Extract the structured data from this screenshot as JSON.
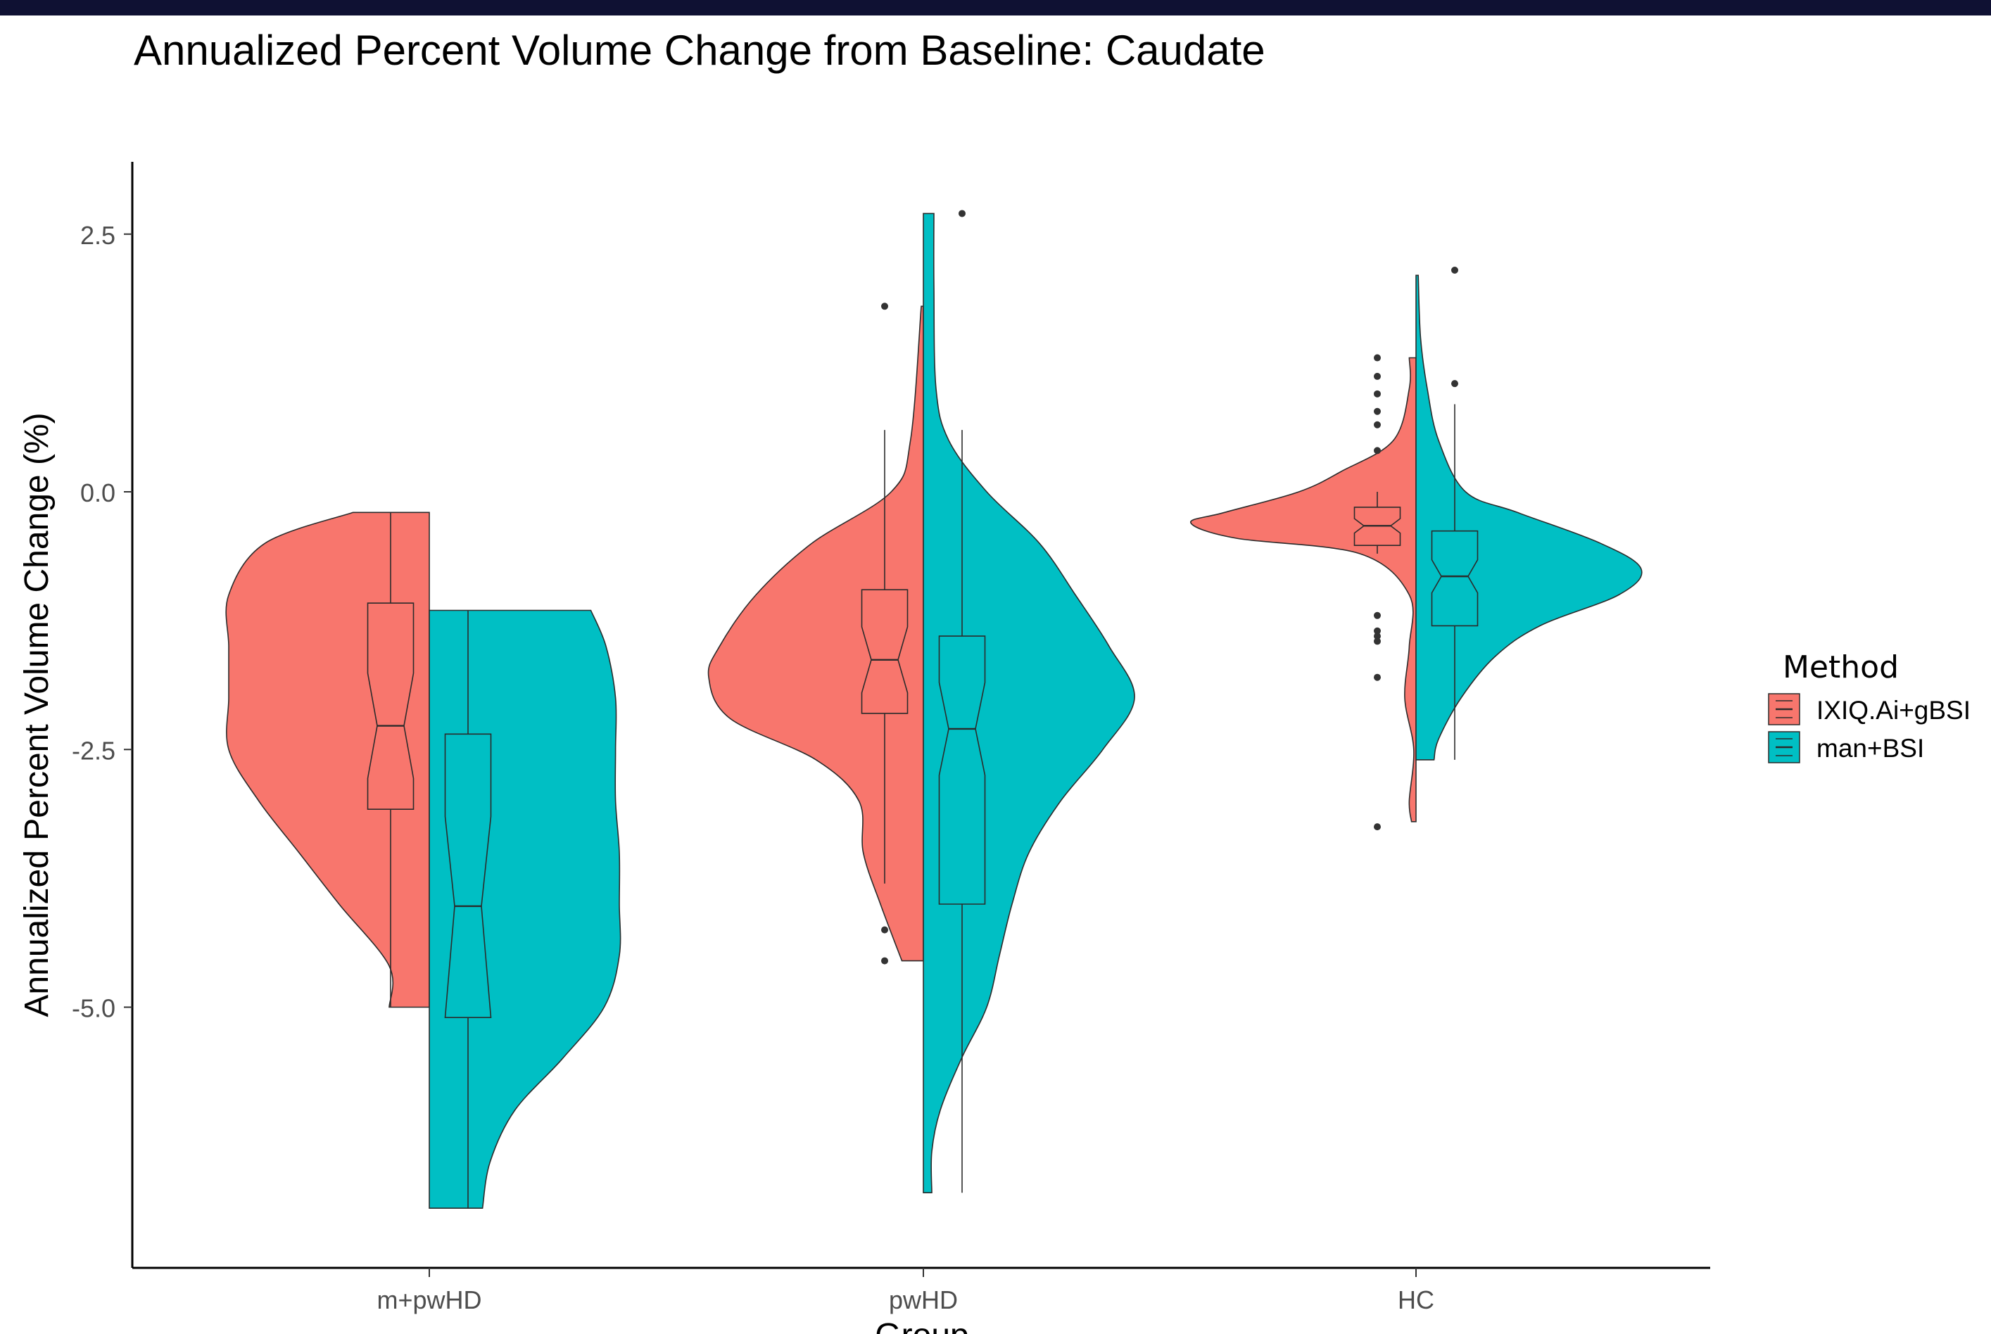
{
  "chart_data": {
    "type": "violin",
    "title": "Annualized Percent Volume Change from Baseline: Caudate",
    "xlabel": "Group",
    "ylabel": "Annualized Percent Volume Change (%)",
    "categories": [
      "m+pwHD",
      "pwHD",
      "HC"
    ],
    "y_ticks": [
      2.5,
      0.0,
      -2.5,
      -5.0
    ],
    "y_tick_labels": [
      "2.5",
      "0.0",
      "-2.5",
      "-5.0"
    ],
    "ylim": [
      -7.5,
      3.1
    ],
    "grid": false,
    "legend": {
      "title": "Method",
      "position": "right",
      "entries": [
        "IXIQ.Ai+gBSI",
        "man+BSI"
      ]
    },
    "colors": {
      "IXIQ.Ai+gBSI": "#F8766D",
      "man+BSI": "#00BFC4"
    },
    "series": [
      {
        "name": "IXIQ.Ai+gBSI",
        "side": "left",
        "groups": [
          {
            "category": "m+pwHD",
            "violin": [
              [
                -0.2,
                0.38
              ],
              [
                -0.5,
                0.82
              ],
              [
                -1.0,
                1.0
              ],
              [
                -1.5,
                1.0
              ],
              [
                -2.0,
                1.0
              ],
              [
                -2.5,
                1.0
              ],
              [
                -3.0,
                0.85
              ],
              [
                -3.5,
                0.65
              ],
              [
                -4.0,
                0.45
              ],
              [
                -4.6,
                0.2
              ],
              [
                -5.0,
                0.2
              ]
            ],
            "box": {
              "min": -5.0,
              "q1": -3.08,
              "median": -2.27,
              "q3": -1.08,
              "max": -0.2,
              "notch_low": -2.78,
              "notch_high": -1.76
            },
            "outliers": []
          },
          {
            "category": "pwHD",
            "violin": [
              [
                1.8,
                0.01
              ],
              [
                0.5,
                0.06
              ],
              [
                0.0,
                0.15
              ],
              [
                -0.5,
                0.52
              ],
              [
                -1.0,
                0.78
              ],
              [
                -1.5,
                0.95
              ],
              [
                -1.8,
                1.0
              ],
              [
                -2.2,
                0.9
              ],
              [
                -2.6,
                0.5
              ],
              [
                -3.0,
                0.3
              ],
              [
                -3.5,
                0.28
              ],
              [
                -4.0,
                0.2
              ],
              [
                -4.55,
                0.1
              ]
            ],
            "box": {
              "min": -3.8,
              "q1": -2.15,
              "median": -1.63,
              "q3": -0.95,
              "max": 0.6,
              "notch_low": -1.95,
              "notch_high": -1.31
            },
            "outliers": [
              1.8,
              -4.25,
              -4.55
            ]
          },
          {
            "category": "HC",
            "violin": [
              [
                1.3,
                0.03
              ],
              [
                1.0,
                0.03
              ],
              [
                0.5,
                0.1
              ],
              [
                0.2,
                0.33
              ],
              [
                0.0,
                0.52
              ],
              [
                -0.2,
                0.85
              ],
              [
                -0.3,
                1.0
              ],
              [
                -0.45,
                0.8
              ],
              [
                -0.6,
                0.25
              ],
              [
                -1.0,
                0.03
              ],
              [
                -1.5,
                0.03
              ],
              [
                -2.0,
                0.05
              ],
              [
                -2.5,
                0.01
              ],
              [
                -3.0,
                0.03
              ],
              [
                -3.2,
                0.02
              ]
            ],
            "box": {
              "min": -0.6,
              "q1": -0.52,
              "median": -0.33,
              "q3": -0.15,
              "max": 0.0,
              "notch_low": -0.4,
              "notch_high": -0.26
            },
            "outliers": [
              1.3,
              1.12,
              0.95,
              0.78,
              0.65,
              0.4,
              -1.2,
              -1.35,
              -1.4,
              -1.45,
              -1.8,
              -3.25
            ]
          }
        ]
      },
      {
        "name": "man+BSI",
        "side": "right",
        "groups": [
          {
            "category": "m+pwHD",
            "violin": [
              [
                -1.15,
                0.85
              ],
              [
                -1.5,
                0.93
              ],
              [
                -2.0,
                0.98
              ],
              [
                -2.5,
                0.98
              ],
              [
                -3.0,
                0.98
              ],
              [
                -3.5,
                1.0
              ],
              [
                -4.0,
                1.0
              ],
              [
                -4.5,
                1.0
              ],
              [
                -5.0,
                0.92
              ],
              [
                -5.5,
                0.7
              ],
              [
                -6.0,
                0.45
              ],
              [
                -6.5,
                0.32
              ],
              [
                -6.95,
                0.28
              ]
            ],
            "box": {
              "min": -6.95,
              "q1": -5.1,
              "median": -4.02,
              "q3": -2.35,
              "max": -1.15,
              "notch_low": -5.1,
              "notch_high": -3.15
            },
            "outliers": []
          },
          {
            "category": "pwHD",
            "violin": [
              [
                2.7,
                0.05
              ],
              [
                2.0,
                0.05
              ],
              [
                1.0,
                0.06
              ],
              [
                0.5,
                0.12
              ],
              [
                0.0,
                0.3
              ],
              [
                -0.5,
                0.55
              ],
              [
                -1.0,
                0.72
              ],
              [
                -1.5,
                0.88
              ],
              [
                -2.0,
                1.0
              ],
              [
                -2.5,
                0.85
              ],
              [
                -3.0,
                0.65
              ],
              [
                -3.5,
                0.5
              ],
              [
                -4.0,
                0.42
              ],
              [
                -4.5,
                0.36
              ],
              [
                -5.0,
                0.3
              ],
              [
                -5.5,
                0.18
              ],
              [
                -6.0,
                0.08
              ],
              [
                -6.4,
                0.04
              ],
              [
                -6.8,
                0.04
              ]
            ],
            "box": {
              "min": -6.8,
              "q1": -4.0,
              "median": -2.3,
              "q3": -1.4,
              "max": 0.6,
              "notch_low": -2.75,
              "notch_high": -1.85
            },
            "outliers": [
              2.7
            ]
          },
          {
            "category": "HC",
            "violin": [
              [
                2.1,
                0.01
              ],
              [
                1.5,
                0.02
              ],
              [
                1.0,
                0.05
              ],
              [
                0.5,
                0.1
              ],
              [
                0.0,
                0.22
              ],
              [
                -0.2,
                0.45
              ],
              [
                -0.5,
                0.82
              ],
              [
                -0.75,
                1.0
              ],
              [
                -1.0,
                0.9
              ],
              [
                -1.3,
                0.55
              ],
              [
                -1.6,
                0.35
              ],
              [
                -2.0,
                0.2
              ],
              [
                -2.4,
                0.1
              ],
              [
                -2.6,
                0.08
              ]
            ],
            "box": {
              "min": -2.6,
              "q1": -1.3,
              "median": -0.82,
              "q3": -0.38,
              "max": 0.85,
              "notch_low": -0.98,
              "notch_high": -0.66
            },
            "outliers": [
              2.15,
              1.05
            ]
          }
        ]
      }
    ]
  }
}
